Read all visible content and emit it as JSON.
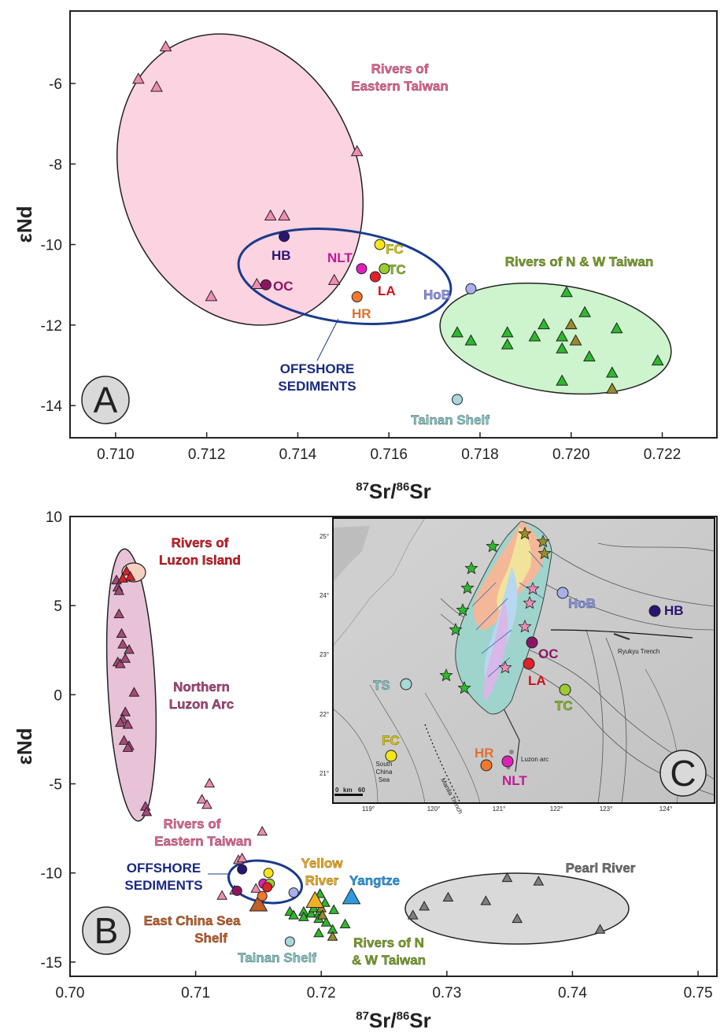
{
  "chart_data": [
    {
      "panel": "A",
      "type": "scatter",
      "xlabel": "87Sr/86Sr",
      "ylabel": "εNd",
      "xlim": [
        0.709,
        0.7232
      ],
      "ylim": [
        -14.8,
        -4.2
      ],
      "xticks": [
        0.71,
        0.712,
        0.714,
        0.716,
        0.718,
        0.72,
        0.722
      ],
      "yticks": [
        -6,
        -8,
        -10,
        -12,
        -14
      ],
      "x_tick_labels": [
        "0.710",
        "0.712",
        "0.714",
        "0.716",
        "0.718",
        "0.720",
        "0.722"
      ],
      "y_tick_labels": [
        "-6",
        "-8",
        "-10",
        "-12",
        "-14"
      ],
      "series": [
        {
          "group": "eastern",
          "marker": "triangle",
          "color": "#f08cb4",
          "points": [
            [
              0.7111,
              -5.1
            ],
            [
              0.7105,
              -5.9
            ],
            [
              0.7109,
              -6.1
            ],
            [
              0.7153,
              -7.7
            ],
            [
              0.7134,
              -9.3
            ],
            [
              0.7137,
              -9.3
            ],
            [
              0.7148,
              -10.9
            ],
            [
              0.7121,
              -11.3
            ],
            [
              0.7131,
              -11.0
            ]
          ]
        },
        {
          "group": "nw_green",
          "marker": "triangle",
          "color": "#2db82d",
          "points": [
            [
              0.7175,
              -12.2
            ],
            [
              0.7178,
              -12.4
            ],
            [
              0.7186,
              -12.2
            ],
            [
              0.7186,
              -12.5
            ],
            [
              0.7192,
              -12.3
            ],
            [
              0.7194,
              -12.0
            ],
            [
              0.7198,
              -12.3
            ],
            [
              0.7198,
              -12.6
            ],
            [
              0.7198,
              -13.4
            ],
            [
              0.7199,
              -11.2
            ],
            [
              0.7203,
              -11.7
            ],
            [
              0.7204,
              -12.8
            ],
            [
              0.721,
              -12.1
            ],
            [
              0.7209,
              -13.2
            ],
            [
              0.7219,
              -12.9
            ]
          ]
        },
        {
          "group": "nw_olive",
          "marker": "triangle",
          "color": "#9a8a2a",
          "points": [
            [
              0.72,
              -12.0
            ],
            [
              0.7201,
              -12.4
            ],
            [
              0.7209,
              -13.6
            ]
          ]
        }
      ],
      "offshore_points": [
        {
          "label": "HB",
          "x": 0.7137,
          "y": -9.8,
          "color": "#2a1570"
        },
        {
          "label": "OC",
          "x": 0.7133,
          "y": -11.0,
          "color": "#8b1565"
        },
        {
          "label": "NLT",
          "x": 0.7154,
          "y": -10.6,
          "color": "#e020b8"
        },
        {
          "label": "FC",
          "x": 0.7158,
          "y": -10.0,
          "color": "#f5e518"
        },
        {
          "label": "TC",
          "x": 0.7159,
          "y": -10.6,
          "color": "#9acd32"
        },
        {
          "label": "LA",
          "x": 0.7157,
          "y": -10.8,
          "color": "#e0202a"
        },
        {
          "label": "HR",
          "x": 0.7153,
          "y": -11.3,
          "color": "#f07830"
        },
        {
          "label": "HoB",
          "x": 0.7178,
          "y": -11.1,
          "color": "#a8b0ec"
        },
        {
          "label": "Tainan Shelf",
          "x": 0.7175,
          "y": -13.85,
          "color": "#a8d8d8"
        }
      ],
      "region_labels": {
        "eastern_1": "Rivers of",
        "eastern_2": "Eastern Taiwan",
        "nw": "Rivers of N & W Taiwan",
        "offshore_1": "OFFSHORE",
        "offshore_2": "SEDIMENTS"
      },
      "panel_letter": "A"
    },
    {
      "panel": "B",
      "type": "scatter",
      "xlabel": "87Sr/86Sr",
      "ylabel": "εNd",
      "xlim": [
        0.7,
        0.7515
      ],
      "ylim": [
        -15.8,
        10
      ],
      "xticks": [
        0.7,
        0.71,
        0.72,
        0.73,
        0.74,
        0.75
      ],
      "yticks": [
        10,
        5,
        0,
        -5,
        -10,
        -15
      ],
      "x_tick_labels": [
        "0.70",
        "0.71",
        "0.72",
        "0.73",
        "0.74",
        "0.75"
      ],
      "y_tick_labels": [
        "10",
        "5",
        "0",
        "-5",
        "-10",
        "-15"
      ],
      "series": [
        {
          "group": "luzon_arc",
          "marker": "triangle",
          "color": "#a8487a",
          "points": [
            [
              0.7037,
              6.4
            ],
            [
              0.7038,
              6.0
            ],
            [
              0.7039,
              5.8
            ],
            [
              0.7039,
              4.5
            ],
            [
              0.7041,
              3.4
            ],
            [
              0.7042,
              2.8
            ],
            [
              0.7038,
              1.8
            ],
            [
              0.704,
              1.7
            ],
            [
              0.7044,
              2.0
            ],
            [
              0.7047,
              2.5
            ],
            [
              0.7051,
              0.1
            ],
            [
              0.7044,
              -1.0
            ],
            [
              0.7042,
              -1.4
            ],
            [
              0.704,
              -1.6
            ],
            [
              0.7046,
              -1.7
            ],
            [
              0.7043,
              -2.6
            ],
            [
              0.7047,
              -2.9
            ],
            [
              0.7046,
              -3.0
            ],
            [
              0.706,
              -6.3
            ],
            [
              0.7061,
              -6.6
            ]
          ]
        },
        {
          "group": "luzon_island",
          "marker": "triangle",
          "color": "#d8202a",
          "points": [
            [
              0.7045,
              6.9
            ],
            [
              0.7048,
              6.6
            ],
            [
              0.7042,
              6.5
            ]
          ]
        },
        {
          "group": "eastern",
          "marker": "triangle",
          "color": "#f08cb4",
          "points": [
            [
              0.7111,
              -5.0
            ],
            [
              0.7105,
              -5.9
            ],
            [
              0.7109,
              -6.2
            ],
            [
              0.7153,
              -7.7
            ],
            [
              0.7134,
              -9.3
            ],
            [
              0.7137,
              -9.2
            ],
            [
              0.7148,
              -10.9
            ],
            [
              0.7121,
              -11.3
            ],
            [
              0.7131,
              -11.0
            ]
          ]
        },
        {
          "group": "nw_green",
          "marker": "triangle",
          "color": "#2db82d",
          "points": [
            [
              0.7175,
              -12.2
            ],
            [
              0.7178,
              -12.4
            ],
            [
              0.7186,
              -12.2
            ],
            [
              0.7186,
              -12.5
            ],
            [
              0.7192,
              -12.3
            ],
            [
              0.7194,
              -12.0
            ],
            [
              0.7198,
              -12.3
            ],
            [
              0.7198,
              -12.6
            ],
            [
              0.7198,
              -13.4
            ],
            [
              0.7199,
              -11.2
            ],
            [
              0.7203,
              -11.7
            ],
            [
              0.7204,
              -12.8
            ],
            [
              0.721,
              -12.1
            ],
            [
              0.7209,
              -13.2
            ],
            [
              0.7219,
              -12.9
            ]
          ]
        },
        {
          "group": "nw_olive",
          "marker": "triangle",
          "color": "#9a8a2a",
          "points": [
            [
              0.72,
              -12.0
            ],
            [
              0.7201,
              -12.4
            ],
            [
              0.7209,
              -13.6
            ]
          ]
        },
        {
          "group": "pearl",
          "marker": "triangle",
          "color": "#7f7f7f",
          "points": [
            [
              0.7273,
              -12.4
            ],
            [
              0.7282,
              -11.9
            ],
            [
              0.7301,
              -11.4
            ],
            [
              0.7331,
              -11.6
            ],
            [
              0.7348,
              -10.3
            ],
            [
              0.7356,
              -12.6
            ],
            [
              0.7373,
              -10.5
            ],
            [
              0.7422,
              -13.2
            ]
          ]
        }
      ],
      "big_markers": [
        {
          "label": "East China Sea Shelf",
          "x": 0.715,
          "y": -11.8,
          "color": "#c0602a"
        },
        {
          "label": "Yellow River",
          "x": 0.7195,
          "y": -11.6,
          "color": "#f0b020"
        },
        {
          "label": "Yangtze",
          "x": 0.7224,
          "y": -11.4,
          "color": "#2b9be0"
        }
      ],
      "offshore_points": [
        {
          "label": "HB",
          "x": 0.7137,
          "y": -9.8,
          "color": "#2a1570"
        },
        {
          "label": "OC",
          "x": 0.7133,
          "y": -11.0,
          "color": "#8b1565"
        },
        {
          "label": "NLT",
          "x": 0.7154,
          "y": -10.6,
          "color": "#e020b8"
        },
        {
          "label": "FC",
          "x": 0.7158,
          "y": -10.0,
          "color": "#f5e518"
        },
        {
          "label": "TC",
          "x": 0.7159,
          "y": -10.6,
          "color": "#9acd32"
        },
        {
          "label": "LA",
          "x": 0.7157,
          "y": -10.8,
          "color": "#e0202a"
        },
        {
          "label": "HR",
          "x": 0.7153,
          "y": -11.3,
          "color": "#f07830"
        },
        {
          "label": "HoB",
          "x": 0.7178,
          "y": -11.1,
          "color": "#a8b0ec"
        },
        {
          "label": "Tainan Shelf",
          "x": 0.7175,
          "y": -13.85,
          "color": "#a8d8d8"
        }
      ],
      "region_labels": {
        "luzon_island_1": "Rivers of",
        "luzon_island_2": "Luzon Island",
        "luzon_arc_1": "Northern",
        "luzon_arc_2": "Luzon Arc",
        "eastern_1": "Rivers of",
        "eastern_2": "Eastern Taiwan",
        "offshore_1": "OFFSHORE",
        "offshore_2": "SEDIMENTS",
        "yellow_1": "Yellow",
        "yellow_2": "River",
        "yangtze": "Yangtze",
        "ecs_1": "East China Sea",
        "ecs_2": "Shelf",
        "tainan": "Tainan Shelf",
        "nw_1": "Rivers of N",
        "nw_2": "& W Taiwan",
        "pearl": "Pearl River"
      },
      "panel_letter": "B"
    },
    {
      "panel": "C",
      "type": "map",
      "lon_ticks": [
        "119°",
        "120°",
        "121°",
        "122°",
        "123°",
        "124°"
      ],
      "lat_ticks": [
        "25°",
        "24°",
        "23°",
        "22°",
        "21°"
      ],
      "site_labels": [
        {
          "label": "HoB",
          "color": "#a8b0ec"
        },
        {
          "label": "HB",
          "color": "#2a1570"
        },
        {
          "label": "OC",
          "color": "#8b1565"
        },
        {
          "label": "LA",
          "color": "#e0202a"
        },
        {
          "label": "TS",
          "color": "#a8d8d8"
        },
        {
          "label": "TC",
          "color": "#9acd32"
        },
        {
          "label": "FC",
          "color": "#f5e518"
        },
        {
          "label": "HR",
          "color": "#f07830"
        },
        {
          "label": "NLT",
          "color": "#e020b8"
        }
      ],
      "small_labels": {
        "ryukyu": "Ryukyu Trench",
        "manila": "Manila Trench",
        "luzon_arc": "Luzon arc",
        "scs_1": "South",
        "scs_2": "China",
        "scs_3": "Sea",
        "scale_0": "0",
        "scale_km": "km",
        "scale_60": "60"
      },
      "panel_letter": "C"
    }
  ]
}
